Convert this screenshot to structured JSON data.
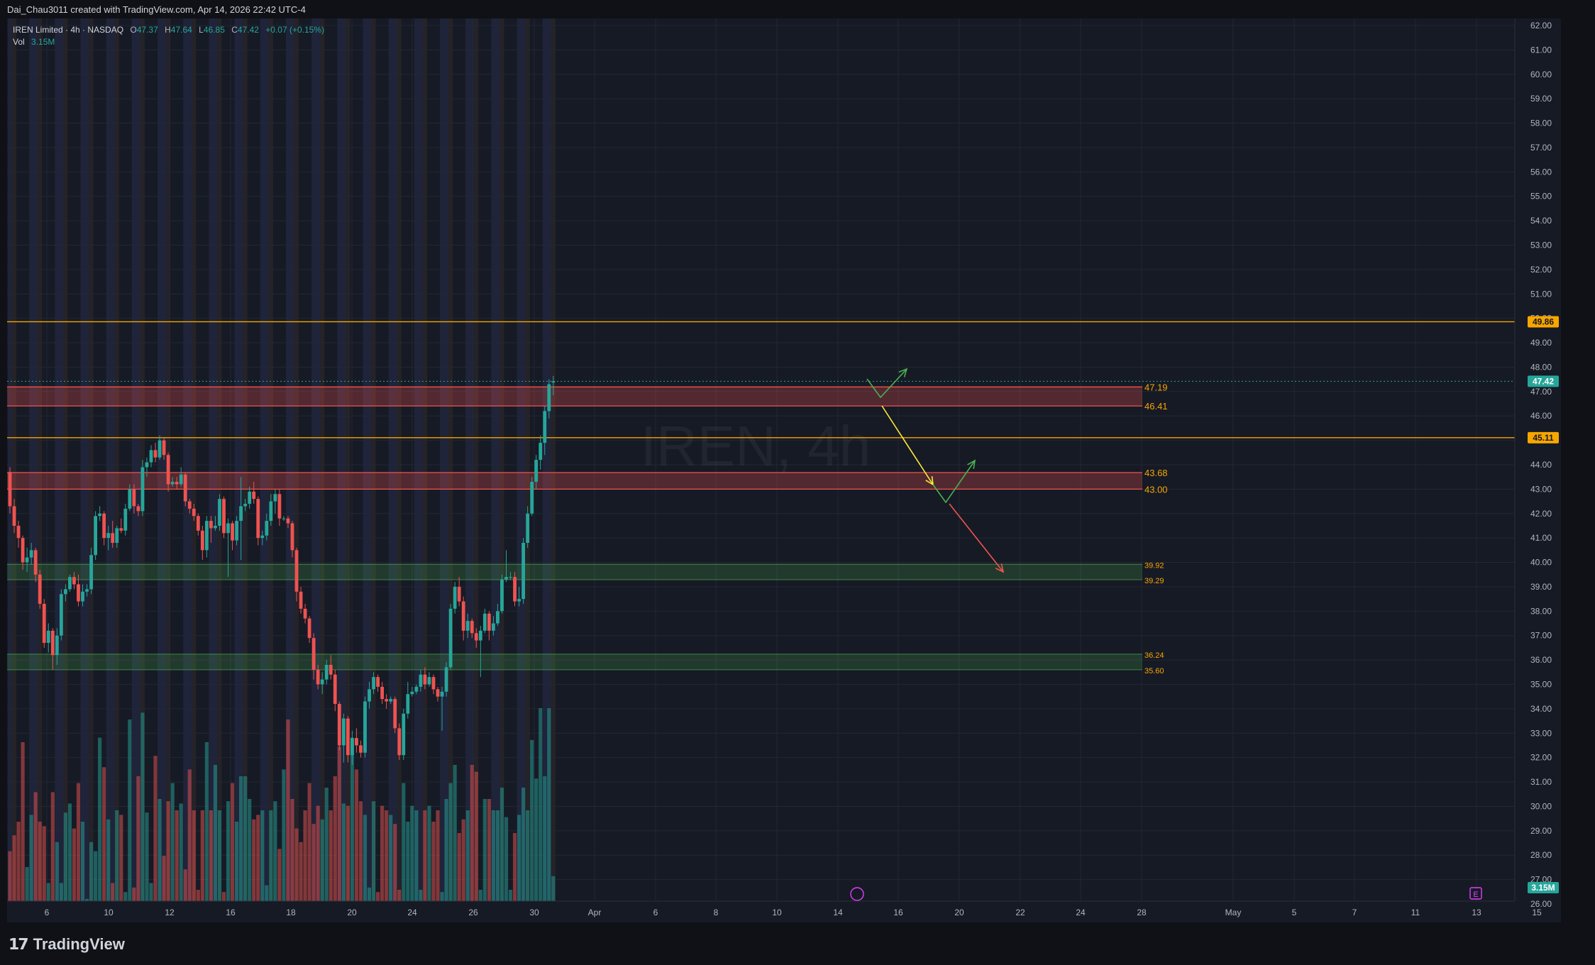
{
  "header": {
    "credit": "Dai_Chau3011 created with TradingView.com, Apr 14, 2026 22:42 UTC-4"
  },
  "legend": {
    "symbol": "IREN Limited · 4h · NASDAQ",
    "o_label": "O",
    "o": "47.37",
    "h_label": "H",
    "h": "47.64",
    "l_label": "L",
    "l": "46.85",
    "c_label": "C",
    "c": "47.42",
    "change": "+0.07 (+0.15%)",
    "vol_label": "Vol",
    "vol": "3.15M"
  },
  "watermark": "IREN, 4h",
  "footer": {
    "brand": "TradingView"
  },
  "colors": {
    "up": "#26a69a",
    "down": "#ef5350",
    "orange": "#f7a600",
    "bg": "#161a25",
    "grid": "#232733"
  },
  "chart_data": {
    "type": "candlestick",
    "symbol": "IREN",
    "timeframe": "4h",
    "ylim": [
      26,
      62
    ],
    "y_ticks": [
      "62.00",
      "61.00",
      "60.00",
      "59.00",
      "58.00",
      "57.00",
      "56.00",
      "55.00",
      "54.00",
      "53.00",
      "52.00",
      "51.00",
      "50.00",
      "49.00",
      "48.00",
      "47.00",
      "46.00",
      "45.00",
      "44.00",
      "43.00",
      "42.00",
      "41.00",
      "40.00",
      "39.00",
      "38.00",
      "37.00",
      "36.00",
      "35.00",
      "34.00",
      "33.00",
      "32.00",
      "31.00",
      "30.00",
      "29.00",
      "28.00",
      "27.00",
      "26.00"
    ],
    "x_ticks": [
      "6",
      "10",
      "12",
      "16",
      "18",
      "20",
      "24",
      "26",
      "30",
      "Apr",
      "6",
      "8",
      "10",
      "14",
      "16",
      "20",
      "22",
      "24",
      "28",
      "May",
      "5",
      "7",
      "11",
      "13",
      "15"
    ],
    "horizontal_lines": [
      {
        "price": 49.86,
        "label": "49.86",
        "style": "axis-badge"
      },
      {
        "price": 45.11,
        "label": "45.11",
        "style": "axis-badge"
      }
    ],
    "zones": [
      {
        "top": 47.19,
        "bottom": 46.41,
        "kind": "resistance",
        "labels": [
          "47.19",
          "46.41"
        ]
      },
      {
        "top": 43.68,
        "bottom": 43.0,
        "kind": "resistance",
        "labels": [
          "43.68",
          "43.00"
        ]
      },
      {
        "top": 39.92,
        "bottom": 39.29,
        "kind": "support",
        "labels": [
          "39.92",
          "39.29"
        ]
      },
      {
        "top": 36.24,
        "bottom": 35.6,
        "kind": "support",
        "labels": [
          "36.24",
          "35.60"
        ]
      }
    ],
    "last_price": {
      "value": 47.42,
      "label": "47.42"
    },
    "volume_badge": "3.15M",
    "candles": [
      [
        43.7,
        43.9,
        42.0,
        42.3
      ],
      [
        42.3,
        42.6,
        41.2,
        41.5
      ],
      [
        41.5,
        41.7,
        40.6,
        41.0
      ],
      [
        41.0,
        41.1,
        39.7,
        40.0
      ],
      [
        40.0,
        40.6,
        39.6,
        40.2
      ],
      [
        40.2,
        40.8,
        39.9,
        40.5
      ],
      [
        40.5,
        40.6,
        39.2,
        39.5
      ],
      [
        39.5,
        39.7,
        38.1,
        38.3
      ],
      [
        38.3,
        38.5,
        36.5,
        36.7
      ],
      [
        36.7,
        37.5,
        36.3,
        37.2
      ],
      [
        37.2,
        37.3,
        35.6,
        36.2
      ],
      [
        36.2,
        37.3,
        35.8,
        37.0
      ],
      [
        37.0,
        38.9,
        36.8,
        38.7
      ],
      [
        38.7,
        39.1,
        38.4,
        38.9
      ],
      [
        38.9,
        39.5,
        38.8,
        39.4
      ],
      [
        39.4,
        39.6,
        38.9,
        39.1
      ],
      [
        39.1,
        39.5,
        38.2,
        38.4
      ],
      [
        38.4,
        39.1,
        38.2,
        38.8
      ],
      [
        38.8,
        39.1,
        38.6,
        38.9
      ],
      [
        38.9,
        40.6,
        38.7,
        40.3
      ],
      [
        40.3,
        42.1,
        40.1,
        41.9
      ],
      [
        41.9,
        42.3,
        41.7,
        42.0
      ],
      [
        42.0,
        42.1,
        40.7,
        41.0
      ],
      [
        41.0,
        41.5,
        40.5,
        41.2
      ],
      [
        41.2,
        41.7,
        40.6,
        40.8
      ],
      [
        40.8,
        41.5,
        40.6,
        41.4
      ],
      [
        41.4,
        41.8,
        41.2,
        41.3
      ],
      [
        41.3,
        42.4,
        41.1,
        42.2
      ],
      [
        42.2,
        43.2,
        42.1,
        43.0
      ],
      [
        43.0,
        43.2,
        42.0,
        42.3
      ],
      [
        42.3,
        42.4,
        41.9,
        42.1
      ],
      [
        42.1,
        44.2,
        41.9,
        43.9
      ],
      [
        43.9,
        44.3,
        43.5,
        44.1
      ],
      [
        44.1,
        44.8,
        43.9,
        44.6
      ],
      [
        44.6,
        44.9,
        44.1,
        44.3
      ],
      [
        44.3,
        45.2,
        44.2,
        45.0
      ],
      [
        45.0,
        45.1,
        44.2,
        44.4
      ],
      [
        44.4,
        44.5,
        42.9,
        43.2
      ],
      [
        43.2,
        43.5,
        43.1,
        43.3
      ],
      [
        43.3,
        43.5,
        43.0,
        43.2
      ],
      [
        43.2,
        43.9,
        43.1,
        43.6
      ],
      [
        43.6,
        43.7,
        42.3,
        42.5
      ],
      [
        42.5,
        42.6,
        42.0,
        42.2
      ],
      [
        42.2,
        42.4,
        41.7,
        41.9
      ],
      [
        41.9,
        42.0,
        41.1,
        41.3
      ],
      [
        41.3,
        41.5,
        40.1,
        40.5
      ],
      [
        40.5,
        41.9,
        40.2,
        41.7
      ],
      [
        41.7,
        41.9,
        40.8,
        41.4
      ],
      [
        41.4,
        41.9,
        41.3,
        41.5
      ],
      [
        41.5,
        42.8,
        41.3,
        42.6
      ],
      [
        42.6,
        42.7,
        41.0,
        41.2
      ],
      [
        41.2,
        41.8,
        39.4,
        41.6
      ],
      [
        41.6,
        41.7,
        40.5,
        40.9
      ],
      [
        40.9,
        41.9,
        40.7,
        41.7
      ],
      [
        41.7,
        43.5,
        40.1,
        42.3
      ],
      [
        42.3,
        42.6,
        42.1,
        42.4
      ],
      [
        42.4,
        43.1,
        42.2,
        42.9
      ],
      [
        42.9,
        43.3,
        42.4,
        42.6
      ],
      [
        42.6,
        42.7,
        40.7,
        41.0
      ],
      [
        41.0,
        41.3,
        40.7,
        41.1
      ],
      [
        41.1,
        42.0,
        40.9,
        41.7
      ],
      [
        41.7,
        42.8,
        41.5,
        42.5
      ],
      [
        42.5,
        43.0,
        42.0,
        42.8
      ],
      [
        42.8,
        43.0,
        41.5,
        41.8
      ],
      [
        41.8,
        41.9,
        41.7,
        41.8
      ],
      [
        41.8,
        41.9,
        41.4,
        41.6
      ],
      [
        41.6,
        41.7,
        40.2,
        40.5
      ],
      [
        40.5,
        40.6,
        38.4,
        38.8
      ],
      [
        38.8,
        39.0,
        37.9,
        38.1
      ],
      [
        38.1,
        38.3,
        37.5,
        37.7
      ],
      [
        37.7,
        37.8,
        36.7,
        36.9
      ],
      [
        36.9,
        37.1,
        35.2,
        35.6
      ],
      [
        35.6,
        35.8,
        34.8,
        35.0
      ],
      [
        35.0,
        35.5,
        34.6,
        35.2
      ],
      [
        35.2,
        36.0,
        35.0,
        35.8
      ],
      [
        35.8,
        36.2,
        35.2,
        35.4
      ],
      [
        35.4,
        35.6,
        33.9,
        34.2
      ],
      [
        34.2,
        34.3,
        32.3,
        32.5
      ],
      [
        32.5,
        33.8,
        31.8,
        33.6
      ],
      [
        33.6,
        33.7,
        31.8,
        32.1
      ],
      [
        32.1,
        33.1,
        31.7,
        32.8
      ],
      [
        32.8,
        33.2,
        32.2,
        32.5
      ],
      [
        32.5,
        32.7,
        32.0,
        32.2
      ],
      [
        32.2,
        34.5,
        32.0,
        34.3
      ],
      [
        34.3,
        35.1,
        34.0,
        34.8
      ],
      [
        34.8,
        35.5,
        34.6,
        35.3
      ],
      [
        35.3,
        35.4,
        34.7,
        34.9
      ],
      [
        34.9,
        35.1,
        34.2,
        34.4
      ],
      [
        34.4,
        34.6,
        34.0,
        34.3
      ],
      [
        34.3,
        34.5,
        34.2,
        34.4
      ],
      [
        34.4,
        34.5,
        33.0,
        33.2
      ],
      [
        33.2,
        33.4,
        31.9,
        32.1
      ],
      [
        32.1,
        34.0,
        31.9,
        33.8
      ],
      [
        33.8,
        35.1,
        33.6,
        34.6
      ],
      [
        34.6,
        34.9,
        34.5,
        34.7
      ],
      [
        34.7,
        35.0,
        34.6,
        34.9
      ],
      [
        34.9,
        35.6,
        34.7,
        35.4
      ],
      [
        35.4,
        35.7,
        34.8,
        35.0
      ],
      [
        35.0,
        35.5,
        34.9,
        35.3
      ],
      [
        35.3,
        35.4,
        34.6,
        34.8
      ],
      [
        34.8,
        34.9,
        34.3,
        34.5
      ],
      [
        34.5,
        34.9,
        33.1,
        34.7
      ],
      [
        34.7,
        35.9,
        34.5,
        35.7
      ],
      [
        35.7,
        38.3,
        35.6,
        38.1
      ],
      [
        38.1,
        39.2,
        37.9,
        39.0
      ],
      [
        39.0,
        39.4,
        38.2,
        38.4
      ],
      [
        38.4,
        38.6,
        36.8,
        37.2
      ],
      [
        37.2,
        37.9,
        36.9,
        37.6
      ],
      [
        37.6,
        37.7,
        36.9,
        37.1
      ],
      [
        37.1,
        37.3,
        36.5,
        36.8
      ],
      [
        36.8,
        37.4,
        35.3,
        37.2
      ],
      [
        37.2,
        38.1,
        37.1,
        37.9
      ],
      [
        37.9,
        38.0,
        36.8,
        37.2
      ],
      [
        37.2,
        37.8,
        37.0,
        37.5
      ],
      [
        37.5,
        38.3,
        37.4,
        38.0
      ],
      [
        38.0,
        39.5,
        37.9,
        39.3
      ],
      [
        39.3,
        40.5,
        39.2,
        39.4
      ],
      [
        39.4,
        39.6,
        39.3,
        39.4
      ],
      [
        39.4,
        39.6,
        38.2,
        38.4
      ],
      [
        38.4,
        39.0,
        38.2,
        38.5
      ],
      [
        38.5,
        41.0,
        38.3,
        40.8
      ],
      [
        40.8,
        42.3,
        40.6,
        42.0
      ],
      [
        42.0,
        43.5,
        41.9,
        43.3
      ],
      [
        43.3,
        44.4,
        43.0,
        44.2
      ],
      [
        44.2,
        45.2,
        43.8,
        44.9
      ],
      [
        44.9,
        46.4,
        44.4,
        46.2
      ],
      [
        46.2,
        47.5,
        45.9,
        47.3
      ],
      [
        47.37,
        47.64,
        46.85,
        47.42
      ]
    ],
    "volumes": [
      0.22,
      0.29,
      0.35,
      0.7,
      0.15,
      0.38,
      0.48,
      0.35,
      0.33,
      0.08,
      0.48,
      0.26,
      0.08,
      0.39,
      0.43,
      0.32,
      0.52,
      0.35,
      0.01,
      0.26,
      0.22,
      0.72,
      0.59,
      0.36,
      0.08,
      0.4,
      0.38,
      0.04,
      0.8,
      0.06,
      0.55,
      0.83,
      0.39,
      0.08,
      0.64,
      0.45,
      0.2,
      0.44,
      0.52,
      0.4,
      0.43,
      0.14,
      0.58,
      0.4,
      0.05,
      0.4,
      0.7,
      0.4,
      0.6,
      0.4,
      0.04,
      0.44,
      0.52,
      0.35,
      0.55,
      0.55,
      0.45,
      0.36,
      0.38,
      0.4,
      0.07,
      0.4,
      0.44,
      0.23,
      0.58,
      0.8,
      0.45,
      0.32,
      0.26,
      0.4,
      0.52,
      0.34,
      0.42,
      0.36,
      0.5,
      0.4,
      0.55,
      0.68,
      0.43,
      0.42,
      0.72,
      0.58,
      0.44,
      0.38,
      0.06,
      0.44,
      0.04,
      0.42,
      0.4,
      0.38,
      0.34,
      0.05,
      0.52,
      0.35,
      0.42,
      0.4,
      0.05,
      0.4,
      0.42,
      0.35,
      0.4,
      0.04,
      0.45,
      0.52,
      0.6,
      0.3,
      0.36,
      0.4,
      0.6,
      0.57,
      0.05,
      0.45,
      0.45,
      0.4,
      0.4,
      0.5,
      0.37,
      0.05,
      0.3,
      0.38,
      0.5,
      0.4,
      0.71,
      0.54,
      0.85,
      0.55,
      0.85,
      0.11
    ]
  }
}
